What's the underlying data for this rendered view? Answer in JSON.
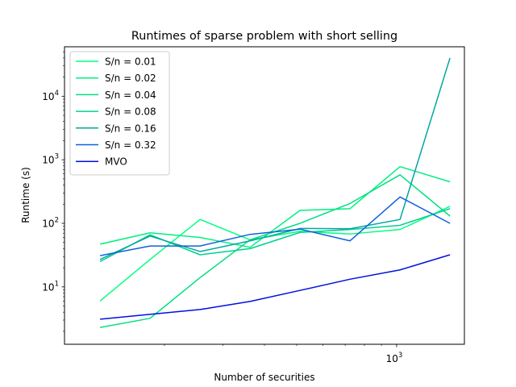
{
  "chart_data": {
    "type": "line",
    "title": "Runtimes of sparse problem with short selling",
    "xlabel": "Number of securities",
    "ylabel": "Runtime (s)",
    "xscale": "log",
    "yscale": "log",
    "xlim": [
      100,
      1600
    ],
    "ylim": [
      1.25,
      60000
    ],
    "x_major_ticks": [
      {
        "value": 1000,
        "label": "10",
        "exp": "3"
      }
    ],
    "x_minor_ticks": [
      200,
      300,
      400,
      500,
      600,
      700,
      800,
      900
    ],
    "y_major_ticks": [
      {
        "value": 10,
        "label": "10",
        "exp": "1"
      },
      {
        "value": 100,
        "label": "10",
        "exp": "2"
      },
      {
        "value": 1000,
        "label": "10",
        "exp": "3"
      },
      {
        "value": 10000,
        "label": "10",
        "exp": "4"
      }
    ],
    "grid": false,
    "legend_position": "top-left",
    "x": [
      128,
      181,
      256,
      362,
      512,
      724,
      1024,
      1448
    ],
    "series": [
      {
        "name": "S/n = 0.01",
        "color": "#00ff80",
        "values": [
          6,
          27,
          115,
          55,
          75,
          68,
          80,
          185
        ]
      },
      {
        "name": "S/n = 0.02",
        "color": "#00f080",
        "values": [
          47,
          71,
          60,
          42,
          160,
          170,
          780,
          450
        ]
      },
      {
        "name": "S/n = 0.04",
        "color": "#00e080",
        "values": [
          2.3,
          3.2,
          14,
          55,
          100,
          205,
          580,
          130
        ]
      },
      {
        "name": "S/n = 0.08",
        "color": "#00d090",
        "values": [
          25,
          66,
          32,
          40,
          72,
          80,
          93,
          170
        ]
      },
      {
        "name": "S/n = 0.16",
        "color": "#00a8a0",
        "values": [
          27,
          63,
          36,
          53,
          83,
          82,
          115,
          40000
        ]
      },
      {
        "name": "S/n = 0.32",
        "color": "#1060d8",
        "values": [
          31,
          44,
          44,
          67,
          81,
          53,
          260,
          100
        ]
      },
      {
        "name": "MVO",
        "color": "#0010e0",
        "values": [
          3.1,
          3.7,
          4.4,
          5.9,
          8.8,
          13.2,
          18.5,
          32
        ]
      }
    ]
  }
}
